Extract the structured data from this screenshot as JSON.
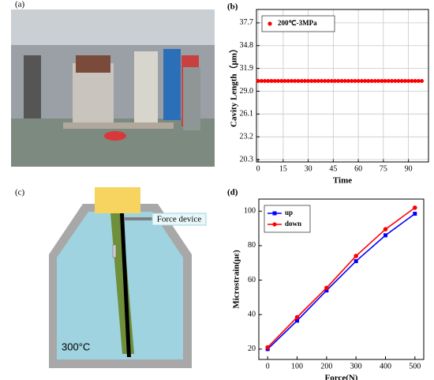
{
  "panels": {
    "a": "(a)",
    "b": "(b)",
    "c": "(c)",
    "d": "(d)"
  },
  "diagram": {
    "force_label": "Force device",
    "temperature": "300°C"
  },
  "chart_data": [
    {
      "type": "scatter",
      "xlabel": "Time",
      "ylabel": "Cavity Length（μm）",
      "xlim": [
        -1,
        102
      ],
      "ylim": [
        20,
        39.4
      ],
      "xticks": [
        0,
        15,
        30,
        45,
        60,
        75,
        90
      ],
      "yticks": [
        20.3,
        23.2,
        26.1,
        {
          "value": 29,
          "label": "29.0"
        },
        31.9,
        34.8,
        37.7
      ],
      "grid": true,
      "legend": "upper left",
      "series": [
        {
          "name": "200℃-3MPa",
          "color": "#ff0000",
          "x": [
            0,
            2,
            4,
            6,
            8,
            10,
            12,
            14,
            16,
            18,
            20,
            22,
            24,
            26,
            28,
            30,
            32,
            34,
            36,
            38,
            40,
            42,
            44,
            46,
            48,
            50,
            52,
            54,
            56,
            58,
            60,
            62,
            64,
            66,
            68,
            70,
            72,
            74,
            76,
            78,
            80,
            82,
            84,
            86,
            88,
            90,
            92,
            94,
            96,
            98
          ],
          "values": [
            30.3,
            30.3,
            30.3,
            30.3,
            30.3,
            30.3,
            30.3,
            30.3,
            30.3,
            30.3,
            30.3,
            30.3,
            30.3,
            30.3,
            30.3,
            30.3,
            30.3,
            30.3,
            30.3,
            30.3,
            30.3,
            30.3,
            30.3,
            30.3,
            30.3,
            30.3,
            30.3,
            30.3,
            30.3,
            30.3,
            30.3,
            30.3,
            30.3,
            30.3,
            30.3,
            30.3,
            30.3,
            30.3,
            30.3,
            30.3,
            30.3,
            30.3,
            30.3,
            30.3,
            30.3,
            30.3,
            30.3,
            30.3,
            30.3,
            30.3
          ]
        }
      ]
    },
    {
      "type": "line",
      "xlabel": "Force(N)",
      "ylabel": "Microstrain(με)",
      "xlim": [
        -30,
        530
      ],
      "ylim": [
        14,
        107
      ],
      "xticks": [
        0,
        100,
        200,
        300,
        400,
        500
      ],
      "yticks": [
        20,
        40,
        60,
        80,
        100
      ],
      "grid": false,
      "legend": "upper left",
      "x": [
        0,
        100,
        200,
        300,
        400,
        500
      ],
      "series": [
        {
          "name": "up",
          "color": "#0000ff",
          "marker": "square",
          "values": [
            20,
            36.5,
            54,
            71,
            86,
            98.5
          ]
        },
        {
          "name": "down",
          "color": "#ff0000",
          "marker": "circle",
          "values": [
            21,
            38.5,
            55.5,
            74,
            89.5,
            102
          ]
        }
      ]
    }
  ]
}
